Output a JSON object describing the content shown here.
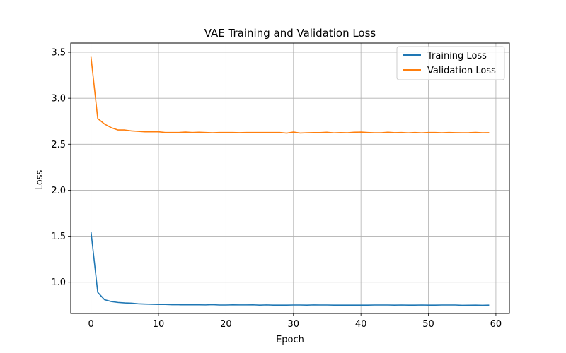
{
  "chart_data": {
    "type": "line",
    "title": "VAE Training and Validation Loss",
    "xlabel": "Epoch",
    "ylabel": "Loss",
    "xlim": [
      -3,
      62
    ],
    "ylim": [
      0.66,
      3.6
    ],
    "xticks": [
      0,
      10,
      20,
      30,
      40,
      50,
      60
    ],
    "yticks": [
      1.0,
      1.5,
      2.0,
      2.5,
      3.0,
      3.5
    ],
    "ytick_labels": [
      "1.0",
      "1.5",
      "2.0",
      "2.5",
      "3.0",
      "3.5"
    ],
    "grid": true,
    "legend_position": "top-right",
    "x": [
      0,
      1,
      2,
      3,
      4,
      5,
      6,
      7,
      8,
      9,
      10,
      11,
      12,
      13,
      14,
      15,
      16,
      17,
      18,
      19,
      20,
      21,
      22,
      23,
      24,
      25,
      26,
      27,
      28,
      29,
      30,
      31,
      32,
      33,
      34,
      35,
      36,
      37,
      38,
      39,
      40,
      41,
      42,
      43,
      44,
      45,
      46,
      47,
      48,
      49,
      50,
      51,
      52,
      53,
      54,
      55,
      56,
      57,
      58,
      59
    ],
    "series": [
      {
        "name": "Training Loss",
        "color": "#1f77b4",
        "values": [
          1.55,
          0.89,
          0.81,
          0.79,
          0.78,
          0.775,
          0.772,
          0.765,
          0.762,
          0.76,
          0.758,
          0.758,
          0.755,
          0.755,
          0.754,
          0.754,
          0.754,
          0.753,
          0.756,
          0.752,
          0.752,
          0.754,
          0.753,
          0.753,
          0.754,
          0.751,
          0.753,
          0.751,
          0.751,
          0.751,
          0.752,
          0.752,
          0.751,
          0.753,
          0.752,
          0.752,
          0.751,
          0.751,
          0.751,
          0.751,
          0.751,
          0.751,
          0.752,
          0.752,
          0.752,
          0.751,
          0.752,
          0.751,
          0.751,
          0.752,
          0.751,
          0.751,
          0.752,
          0.752,
          0.752,
          0.749,
          0.75,
          0.751,
          0.749,
          0.751
        ]
      },
      {
        "name": "Validation Loss",
        "color": "#ff7f0e",
        "values": [
          3.45,
          2.78,
          2.72,
          2.68,
          2.655,
          2.655,
          2.645,
          2.64,
          2.635,
          2.635,
          2.635,
          2.628,
          2.628,
          2.628,
          2.632,
          2.628,
          2.63,
          2.628,
          2.625,
          2.628,
          2.628,
          2.628,
          2.626,
          2.628,
          2.628,
          2.628,
          2.628,
          2.628,
          2.628,
          2.621,
          2.632,
          2.622,
          2.625,
          2.627,
          2.627,
          2.63,
          2.624,
          2.627,
          2.625,
          2.63,
          2.632,
          2.628,
          2.625,
          2.625,
          2.63,
          2.626,
          2.628,
          2.624,
          2.628,
          2.624,
          2.628,
          2.628,
          2.625,
          2.628,
          2.626,
          2.625,
          2.626,
          2.629,
          2.625,
          2.626
        ]
      }
    ]
  }
}
